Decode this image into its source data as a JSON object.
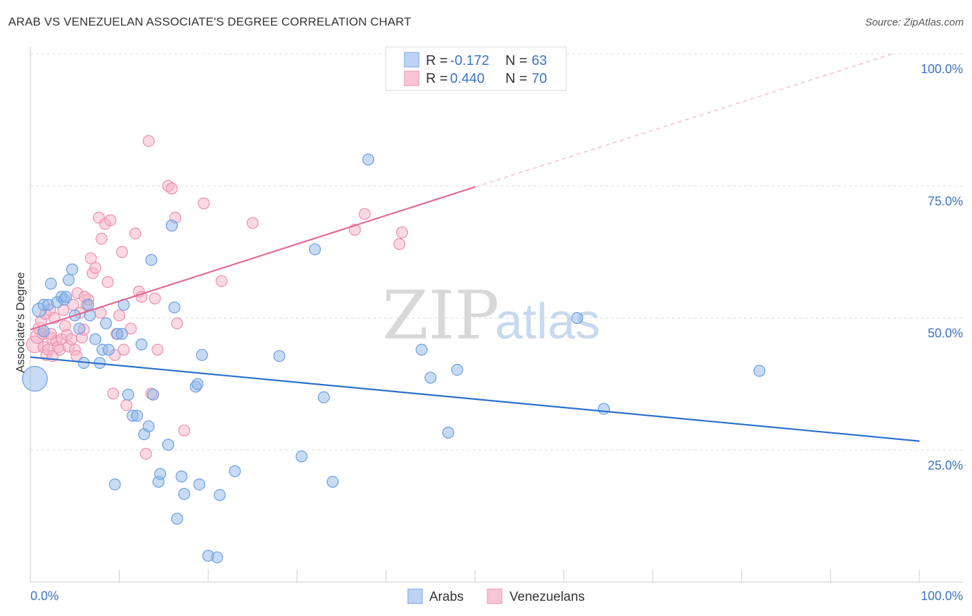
{
  "title": "ARAB VS VENEZUELAN ASSOCIATE'S DEGREE CORRELATION CHART",
  "source": "Source: ZipAtlas.com",
  "watermark": {
    "zip": "ZIP",
    "atlas": "atlas"
  },
  "colors": {
    "arab": "#8fb7ea",
    "arab_stroke": "#6c9ee0",
    "arab_line": "#2a6fcc",
    "venez": "#f5b3c8",
    "venez_stroke": "#ea8fae",
    "venez_line": "#e26a95",
    "axis_label": "#3d72c9"
  },
  "legend": {
    "r_label": "R =",
    "n_label": "N =",
    "arab_r": "-0.172",
    "arab_n": "63",
    "venez_r": "0.440",
    "venez_n": "70"
  },
  "chart_data": {
    "type": "scatter",
    "title": "ARAB VS VENEZUELAN ASSOCIATE'S DEGREE CORRELATION CHART",
    "xlabel": "",
    "ylabel": "Associate's Degree",
    "xlim": [
      0,
      100
    ],
    "ylim": [
      0,
      100
    ],
    "x_tick_labels": [
      "0.0%",
      "100.0%"
    ],
    "y_ticks": [
      25,
      50,
      75,
      100
    ],
    "y_tick_labels": [
      "25.0%",
      "50.0%",
      "75.0%",
      "100.0%"
    ],
    "legend_position": "bottom-center",
    "series": [
      {
        "name": "Arabs",
        "r": -0.172,
        "n": 63,
        "trend": {
          "x0": 0,
          "y0": 42.6,
          "x1": 100,
          "y1": 26.7
        },
        "points": [
          [
            0.5,
            38.5,
            18
          ],
          [
            1.0,
            51.5,
            10
          ],
          [
            1.5,
            47.5,
            8
          ],
          [
            1.5,
            52.5,
            8
          ],
          [
            2.0,
            52.5,
            8
          ],
          [
            2.3,
            56.5,
            8
          ],
          [
            3.0,
            53.0,
            8
          ],
          [
            3.5,
            54.0,
            8
          ],
          [
            3.8,
            53.5,
            8
          ],
          [
            4.0,
            54.0,
            8
          ],
          [
            4.3,
            57.2,
            8
          ],
          [
            4.7,
            59.2,
            8
          ],
          [
            5.0,
            50.5,
            8
          ],
          [
            5.5,
            48.0,
            8
          ],
          [
            6.0,
            41.5,
            8
          ],
          [
            6.5,
            52.5,
            8
          ],
          [
            6.7,
            50.5,
            8
          ],
          [
            7.3,
            46.0,
            8
          ],
          [
            7.8,
            41.5,
            8
          ],
          [
            8.1,
            44.0,
            8
          ],
          [
            8.5,
            49.0,
            8
          ],
          [
            8.8,
            44.0,
            8
          ],
          [
            9.5,
            18.5,
            8
          ],
          [
            9.8,
            47.0,
            8
          ],
          [
            10.3,
            47.0,
            8
          ],
          [
            10.5,
            52.5,
            8
          ],
          [
            11.0,
            35.5,
            8
          ],
          [
            11.5,
            31.5,
            8
          ],
          [
            12.0,
            31.5,
            8
          ],
          [
            12.5,
            45.0,
            8
          ],
          [
            12.8,
            28.0,
            8
          ],
          [
            13.3,
            29.5,
            8
          ],
          [
            13.6,
            61.0,
            8
          ],
          [
            13.8,
            35.5,
            8
          ],
          [
            14.4,
            19.0,
            8
          ],
          [
            14.6,
            20.5,
            8
          ],
          [
            15.5,
            26.0,
            8
          ],
          [
            15.9,
            67.5,
            8
          ],
          [
            16.2,
            52.0,
            8
          ],
          [
            16.5,
            12.0,
            8
          ],
          [
            17.0,
            20.0,
            8
          ],
          [
            17.3,
            16.7,
            8
          ],
          [
            18.6,
            37.0,
            8
          ],
          [
            18.8,
            37.5,
            8
          ],
          [
            19.0,
            18.5,
            8
          ],
          [
            19.3,
            43.0,
            8
          ],
          [
            20.0,
            5.0,
            8
          ],
          [
            21.0,
            4.7,
            8
          ],
          [
            21.3,
            16.5,
            8
          ],
          [
            23.0,
            21.0,
            8
          ],
          [
            28.0,
            42.8,
            8
          ],
          [
            30.5,
            23.8,
            8
          ],
          [
            32.0,
            63.0,
            8
          ],
          [
            33.0,
            35.0,
            8
          ],
          [
            34.0,
            19.0,
            8
          ],
          [
            38.0,
            80.0,
            8
          ],
          [
            44.0,
            44.0,
            8
          ],
          [
            45.0,
            38.7,
            8
          ],
          [
            47.0,
            28.3,
            8
          ],
          [
            48.0,
            40.2,
            8
          ],
          [
            61.5,
            50.0,
            8
          ],
          [
            64.5,
            32.8,
            8
          ],
          [
            82.0,
            40.0,
            8
          ]
        ]
      },
      {
        "name": "Venezuelans",
        "r": 0.44,
        "n": 70,
        "trend": {
          "x0": 0,
          "y0": 47.8,
          "x1": 50,
          "y1": 74.8,
          "dash_to_x": 97,
          "dash_to_y": 100
        },
        "points": [
          [
            0.5,
            45.0,
            12
          ],
          [
            0.8,
            46.5,
            10
          ],
          [
            1.0,
            48.0,
            9
          ],
          [
            1.2,
            49.5,
            8
          ],
          [
            1.4,
            47.0,
            8
          ],
          [
            1.5,
            44.5,
            8
          ],
          [
            1.7,
            50.8,
            8
          ],
          [
            1.8,
            43.0,
            8
          ],
          [
            2.0,
            44.0,
            8
          ],
          [
            2.2,
            51.5,
            8
          ],
          [
            2.4,
            46.2,
            8
          ],
          [
            2.5,
            42.8,
            8
          ],
          [
            2.7,
            50.0,
            8
          ],
          [
            2.9,
            45.7,
            8
          ],
          [
            3.1,
            44.5,
            8
          ],
          [
            3.3,
            44.0,
            8
          ],
          [
            3.5,
            46.0,
            8
          ],
          [
            3.7,
            51.5,
            8
          ],
          [
            3.9,
            48.5,
            8
          ],
          [
            4.1,
            46.8,
            8
          ],
          [
            4.3,
            44.6,
            8
          ],
          [
            4.6,
            46.0,
            8
          ],
          [
            4.8,
            52.5,
            8
          ],
          [
            5.0,
            44.0,
            8
          ],
          [
            5.2,
            42.8,
            8
          ],
          [
            5.3,
            54.7,
            8
          ],
          [
            5.6,
            51.0,
            8
          ],
          [
            5.8,
            46.3,
            8
          ],
          [
            6.0,
            47.8,
            8
          ],
          [
            6.3,
            52.5,
            8
          ],
          [
            6.5,
            53.5,
            8
          ],
          [
            6.8,
            61.3,
            8
          ],
          [
            7.0,
            58.5,
            8
          ],
          [
            7.3,
            59.5,
            8
          ],
          [
            7.7,
            69.0,
            8
          ],
          [
            7.9,
            51.0,
            8
          ],
          [
            8.0,
            65.0,
            8
          ],
          [
            8.4,
            67.8,
            8
          ],
          [
            8.7,
            56.8,
            8
          ],
          [
            9.0,
            68.5,
            8
          ],
          [
            9.3,
            35.7,
            8
          ],
          [
            9.5,
            43.0,
            8
          ],
          [
            9.7,
            47.0,
            8
          ],
          [
            10.0,
            50.5,
            8
          ],
          [
            10.3,
            62.5,
            8
          ],
          [
            10.5,
            44.0,
            8
          ],
          [
            10.8,
            33.5,
            8
          ],
          [
            11.3,
            48.0,
            8
          ],
          [
            11.8,
            66.0,
            8
          ],
          [
            12.2,
            55.0,
            8
          ],
          [
            12.5,
            54.0,
            8
          ],
          [
            13.0,
            24.3,
            8
          ],
          [
            13.3,
            83.5,
            8
          ],
          [
            13.6,
            35.7,
            8
          ],
          [
            14.0,
            53.7,
            8
          ],
          [
            14.3,
            44.0,
            8
          ],
          [
            15.5,
            75.0,
            8
          ],
          [
            15.9,
            74.5,
            8
          ],
          [
            16.3,
            69.0,
            8
          ],
          [
            16.5,
            49.0,
            8
          ],
          [
            17.3,
            28.7,
            8
          ],
          [
            19.5,
            71.7,
            8
          ],
          [
            21.5,
            57.0,
            8
          ],
          [
            25.0,
            68.0,
            8
          ],
          [
            36.5,
            66.7,
            8
          ],
          [
            37.6,
            69.7,
            8
          ],
          [
            41.5,
            64.0,
            8
          ],
          [
            41.8,
            66.2,
            8
          ],
          [
            2.3,
            47.0,
            8
          ],
          [
            6.1,
            54.0,
            8
          ]
        ]
      }
    ]
  }
}
